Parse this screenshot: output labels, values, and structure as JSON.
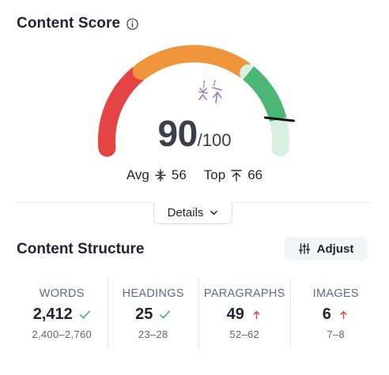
{
  "content_score": {
    "title": "Content Score",
    "info_icon": "info-icon",
    "score": "90",
    "max": "/100",
    "score_fraction": 0.9,
    "avg_label": "Avg",
    "avg_value": "56",
    "top_label": "Top",
    "top_value": "66",
    "colors": {
      "red": "#e54444",
      "orange": "#f0953c",
      "green": "#4cb774",
      "light_green": "#d8f0df",
      "marker": "#9b6fd6"
    }
  },
  "details_label": "Details",
  "content_structure": {
    "title": "Content Structure",
    "adjust_label": "Adjust",
    "metrics": [
      {
        "label": "WORDS",
        "value": "2,412",
        "status": "check",
        "range": "2,400–2,760"
      },
      {
        "label": "HEADINGS",
        "value": "25",
        "status": "check",
        "range": "23–28"
      },
      {
        "label": "PARAGRAPHS",
        "value": "49",
        "status": "up",
        "range": "52–62"
      },
      {
        "label": "IMAGES",
        "value": "6",
        "status": "up",
        "range": "7–8"
      }
    ]
  }
}
